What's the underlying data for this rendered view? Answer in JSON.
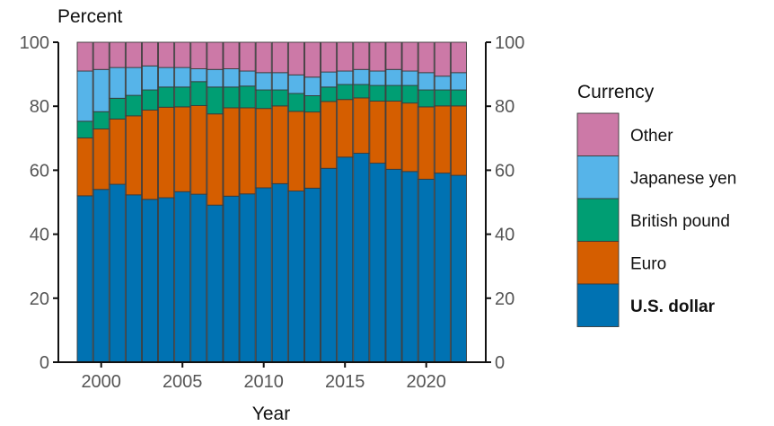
{
  "chart_data": {
    "type": "bar",
    "stacked": true,
    "title": "",
    "ylabel": "Percent",
    "xlabel": "Year",
    "ylim": [
      0,
      100
    ],
    "yticks": [
      0,
      20,
      40,
      60,
      80,
      100
    ],
    "xticks": [
      2000,
      2005,
      2010,
      2015,
      2020
    ],
    "secondary_y_axis": true,
    "grid": false,
    "legend": {
      "title": "Currency",
      "placement": "right",
      "order": [
        "Other",
        "Japanese yen",
        "British pound",
        "Euro",
        "U.S. dollar"
      ],
      "bold": [
        "U.S. dollar"
      ]
    },
    "categories": [
      1999,
      2000,
      2001,
      2002,
      2003,
      2004,
      2005,
      2006,
      2007,
      2008,
      2009,
      2010,
      2011,
      2012,
      2013,
      2014,
      2015,
      2016,
      2017,
      2018,
      2019,
      2020,
      2021,
      2022
    ],
    "series": [
      {
        "name": "U.S. dollar",
        "color": "#0072B2",
        "values": [
          52.0,
          54.0,
          55.6,
          52.3,
          50.9,
          51.4,
          53.3,
          52.5,
          49.1,
          51.9,
          52.6,
          54.5,
          55.8,
          53.5,
          54.4,
          60.6,
          64.1,
          65.3,
          62.2,
          60.3,
          59.6,
          57.2,
          59.1,
          58.4
        ]
      },
      {
        "name": "Euro",
        "color": "#D55E00",
        "values": [
          18.1,
          18.9,
          20.4,
          24.7,
          27.9,
          28.3,
          26.5,
          27.7,
          28.5,
          27.6,
          26.9,
          24.8,
          24.3,
          24.9,
          23.8,
          20.9,
          18.0,
          17.3,
          19.4,
          21.3,
          21.4,
          22.6,
          21.0,
          21.7
        ]
      },
      {
        "name": "British pound",
        "color": "#009E73",
        "values": [
          5.2,
          5.4,
          6.5,
          6.4,
          6.3,
          6.3,
          6.2,
          7.5,
          8.4,
          6.5,
          6.8,
          5.8,
          5.0,
          5.6,
          5.1,
          4.5,
          4.7,
          4.2,
          4.9,
          4.9,
          5.5,
          5.3,
          5.0,
          5.0
        ]
      },
      {
        "name": "Japanese yen",
        "color": "#56B4E9",
        "values": [
          15.7,
          13.2,
          9.6,
          8.7,
          7.5,
          6.1,
          6.1,
          4.0,
          5.5,
          5.7,
          4.7,
          5.4,
          5.4,
          5.8,
          5.8,
          4.7,
          4.2,
          4.7,
          4.5,
          5.0,
          4.5,
          5.4,
          4.3,
          5.4
        ]
      },
      {
        "name": "Other",
        "color": "#CC79A7",
        "values": [
          9.0,
          8.5,
          7.9,
          7.9,
          7.4,
          7.9,
          7.9,
          8.3,
          8.5,
          8.3,
          9.0,
          9.5,
          9.5,
          10.2,
          10.9,
          9.3,
          9.0,
          8.5,
          9.0,
          8.5,
          9.0,
          9.5,
          10.6,
          9.5
        ]
      }
    ]
  }
}
